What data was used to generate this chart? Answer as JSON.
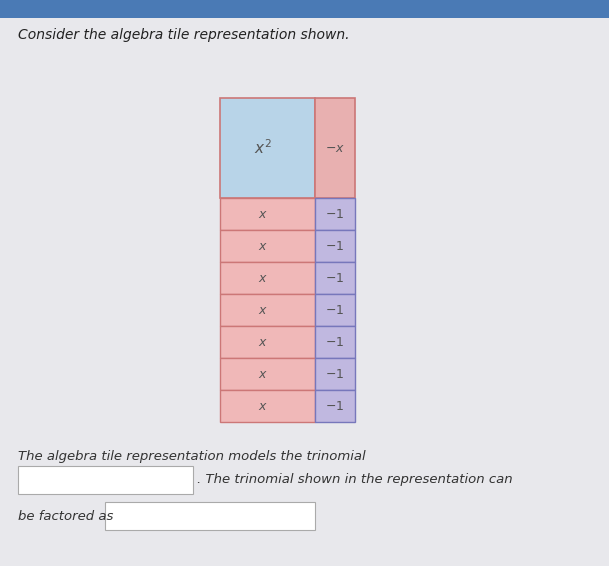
{
  "background_color": "#e8e8ec",
  "nav_bar_color": "#4a7ab5",
  "nav_bar_height": 0.035,
  "title_text": "Consider the algebra tile representation shown.",
  "title_fontsize": 10,
  "title_color": "#222222",
  "top_square_color": "#b8d4e8",
  "top_square_label": "$x^2$",
  "top_right_color": "#e8b0b0",
  "top_right_label": "$-x$",
  "x_tile_color": "#f0b8b8",
  "x_tile_label": "$x$",
  "neg1_tile_color": "#c0b8e0",
  "neg1_tile_label": "$-1$",
  "tile_edge_pink": "#cc7777",
  "tile_edge_blue": "#7777bb",
  "num_rows": 7,
  "bottom_text1": "The algebra tile representation models the trinomial",
  "bottom_text2": ". The trinomial shown in the representation can",
  "bottom_text3": "be factored as",
  "text_fontsize": 9.5,
  "text_color": "#333333",
  "fig_width": 6.09,
  "fig_height": 5.66,
  "dpi": 100
}
